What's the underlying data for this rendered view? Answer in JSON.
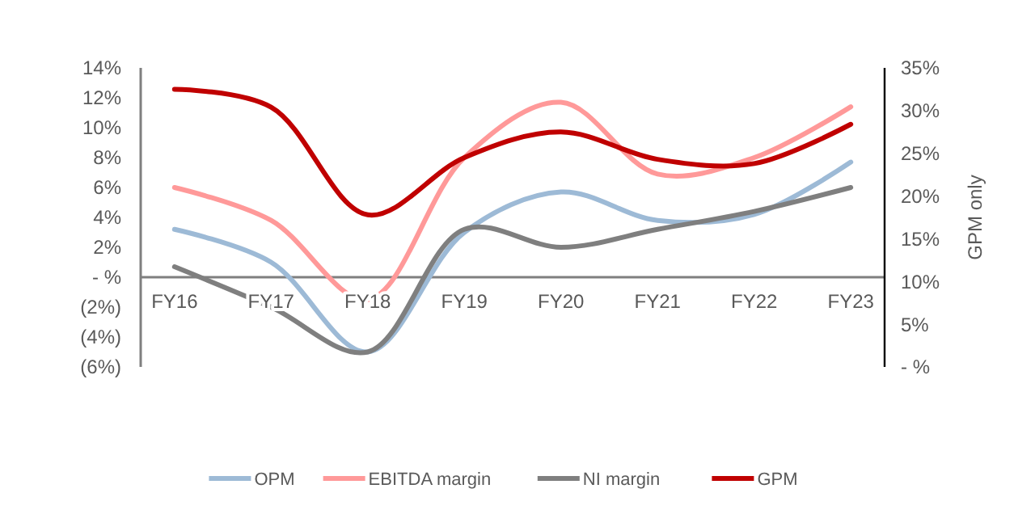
{
  "chart_data": {
    "type": "line",
    "categories": [
      "FY16",
      "FY17",
      "FY18",
      "FY19",
      "FY20",
      "FY21",
      "FY22",
      "FY23"
    ],
    "series": [
      {
        "name": "OPM",
        "color": "#9dbad6",
        "values": [
          3.2,
          1,
          -5,
          3,
          5.7,
          3.8,
          4.2,
          7.7
        ]
      },
      {
        "name": "EBITDA margin",
        "color": "#ff9999",
        "values": [
          6,
          3.8,
          -1.5,
          8,
          11.7,
          6.9,
          8,
          11.4
        ]
      },
      {
        "name": "NI margin",
        "color": "#7f7f7f",
        "values": [
          0.7,
          -2,
          -5,
          3.2,
          2,
          3.2,
          4.4,
          6
        ]
      },
      {
        "name": "GPM",
        "color": "#c00000",
        "axis": "y2",
        "values": [
          32.5,
          30.4,
          17.8,
          24.5,
          27.5,
          24.3,
          23.8,
          28.4
        ]
      }
    ],
    "ylim": [
      -6,
      14
    ],
    "yticks": [
      {
        "value": -6,
        "label": "(6%)"
      },
      {
        "value": -4,
        "label": "(4%)"
      },
      {
        "value": -2,
        "label": "(2%)"
      },
      {
        "value": 0,
        "label": "- %"
      },
      {
        "value": 2,
        "label": "2%"
      },
      {
        "value": 4,
        "label": "4%"
      },
      {
        "value": 6,
        "label": "6%"
      },
      {
        "value": 8,
        "label": "8%"
      },
      {
        "value": 10,
        "label": "10%"
      },
      {
        "value": 12,
        "label": "12%"
      },
      {
        "value": 14,
        "label": "14%"
      }
    ],
    "y2lim": [
      0,
      35
    ],
    "y2ticks": [
      {
        "value": 0,
        "label": "- %"
      },
      {
        "value": 5,
        "label": "5%"
      },
      {
        "value": 10,
        "label": "10%"
      },
      {
        "value": 15,
        "label": "15%"
      },
      {
        "value": 20,
        "label": "20%"
      },
      {
        "value": 25,
        "label": "25%"
      },
      {
        "value": 30,
        "label": "30%"
      },
      {
        "value": 35,
        "label": "35%"
      }
    ],
    "y2label": "GPM only",
    "legend": "bottom",
    "grid": false,
    "marker": "none",
    "line_style": "solid"
  }
}
